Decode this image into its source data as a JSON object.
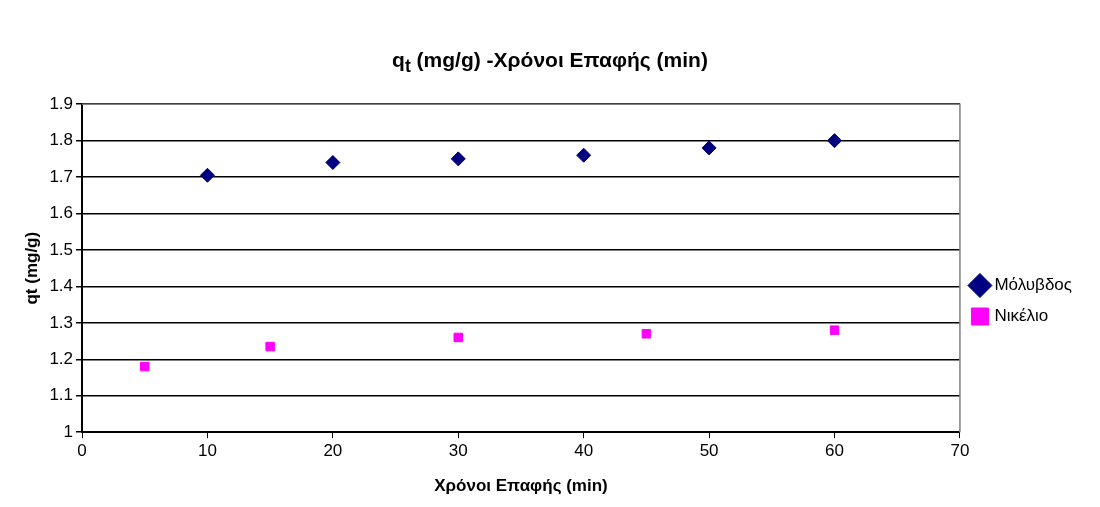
{
  "chart_data": {
    "type": "scatter",
    "title": "q$_{t}$ (mg/g) -Χρόνοι Επαφής (min)",
    "xlabel": "Χρόνοι Επαφής (min)",
    "ylabel": "qt (mg/g)",
    "xlim": [
      0,
      70
    ],
    "xticks": [
      0,
      10,
      20,
      30,
      40,
      50,
      60,
      70
    ],
    "ylim": [
      1,
      1.9
    ],
    "yticks": [
      1,
      1.1,
      1.2,
      1.3,
      1.4,
      1.5,
      1.6,
      1.7,
      1.8,
      1.9
    ],
    "grid": "y",
    "legend": "right",
    "series": [
      {
        "name": "Μόλυβδος",
        "color": "#000080",
        "marker": "diamond",
        "x": [
          10,
          20,
          30,
          40,
          50,
          60
        ],
        "values": [
          1.705,
          1.74,
          1.75,
          1.76,
          1.78,
          1.8
        ]
      },
      {
        "name": "Νικέλιο",
        "color": "#ff00ff",
        "marker": "square",
        "x": [
          5,
          15,
          30,
          45,
          60
        ],
        "values": [
          1.18,
          1.235,
          1.26,
          1.27,
          1.28
        ]
      }
    ]
  }
}
